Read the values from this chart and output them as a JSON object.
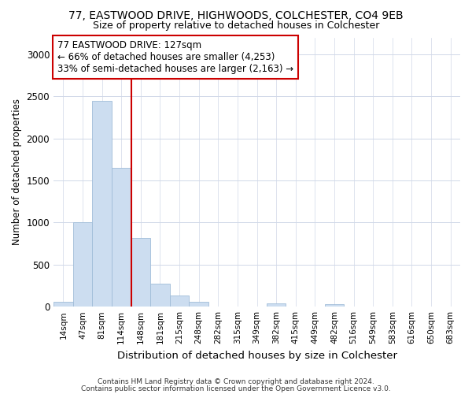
{
  "title1": "77, EASTWOOD DRIVE, HIGHWOODS, COLCHESTER, CO4 9EB",
  "title2": "Size of property relative to detached houses in Colchester",
  "xlabel": "Distribution of detached houses by size in Colchester",
  "ylabel": "Number of detached properties",
  "bar_color": "#ccddf0",
  "bar_edge_color": "#a0bcd8",
  "categories": [
    "14sqm",
    "47sqm",
    "81sqm",
    "114sqm",
    "148sqm",
    "181sqm",
    "215sqm",
    "248sqm",
    "282sqm",
    "315sqm",
    "349sqm",
    "382sqm",
    "415sqm",
    "449sqm",
    "482sqm",
    "516sqm",
    "549sqm",
    "583sqm",
    "616sqm",
    "650sqm",
    "683sqm"
  ],
  "values": [
    55,
    1000,
    2450,
    1650,
    820,
    270,
    130,
    55,
    0,
    0,
    0,
    40,
    0,
    0,
    30,
    0,
    0,
    0,
    0,
    0,
    0
  ],
  "ylim": [
    0,
    3200
  ],
  "yticks": [
    0,
    500,
    1000,
    1500,
    2000,
    2500,
    3000
  ],
  "annotation_text": "77 EASTWOOD DRIVE: 127sqm\n← 66% of detached houses are smaller (4,253)\n33% of semi-detached houses are larger (2,163) →",
  "annotation_box_color": "#ffffff",
  "annotation_box_edgecolor": "#cc0000",
  "vline_color": "#cc0000",
  "vline_x_index": 3.5,
  "footer1": "Contains HM Land Registry data © Crown copyright and database right 2024.",
  "footer2": "Contains public sector information licensed under the Open Government Licence v3.0.",
  "bg_color": "#ffffff",
  "grid_color": "#d0d8e8"
}
